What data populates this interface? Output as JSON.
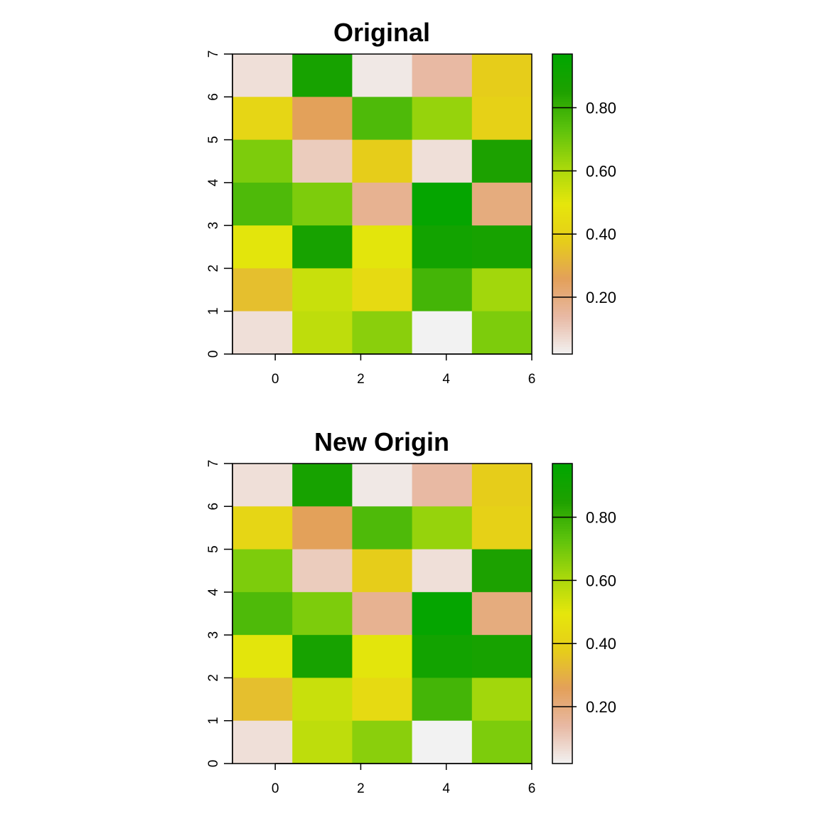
{
  "chart_data": [
    {
      "type": "heatmap",
      "title": "Original",
      "xlabel": "",
      "ylabel": "",
      "x_ticks": [
        "0",
        "2",
        "4",
        "6"
      ],
      "y_ticks": [
        "0",
        "1",
        "2",
        "3",
        "4",
        "5",
        "6",
        "7"
      ],
      "xlim": [
        -1,
        6
      ],
      "ylim": [
        0,
        7
      ],
      "legend_ticks": [
        "0.20",
        "0.40",
        "0.60",
        "0.80"
      ],
      "legend_range": [
        0.02,
        0.97
      ],
      "colors": [
        "#F2F2F2",
        "#E8B9A4",
        "#E3A05B",
        "#E6CC1A",
        "#E6E60C",
        "#A6D80C",
        "#5DC20C",
        "#1EA100",
        "#00A600"
      ],
      "rows_top_to_bottom": [
        [
          0.06,
          0.88,
          0.04,
          0.14,
          0.38
        ],
        [
          0.42,
          0.26,
          0.76,
          0.64,
          0.4
        ],
        [
          0.68,
          0.1,
          0.38,
          0.06,
          0.86
        ],
        [
          0.76,
          0.68,
          0.17,
          0.95,
          0.2
        ],
        [
          0.5,
          0.88,
          0.5,
          0.9,
          0.88
        ],
        [
          0.34,
          0.55,
          0.44,
          0.78,
          0.62
        ],
        [
          0.06,
          0.57,
          0.66,
          0.02,
          0.68
        ]
      ]
    },
    {
      "type": "heatmap",
      "title": "New Origin",
      "xlabel": "",
      "ylabel": "",
      "x_ticks": [
        "0",
        "2",
        "4",
        "6"
      ],
      "y_ticks": [
        "0",
        "1",
        "2",
        "3",
        "4",
        "5",
        "6",
        "7"
      ],
      "xlim": [
        -1,
        6
      ],
      "ylim": [
        0,
        7
      ],
      "legend_ticks": [
        "0.20",
        "0.40",
        "0.60",
        "0.80"
      ],
      "legend_range": [
        0.02,
        0.97
      ],
      "colors": [
        "#F2F2F2",
        "#E8B9A4",
        "#E3A05B",
        "#E6CC1A",
        "#E6E60C",
        "#A6D80C",
        "#5DC20C",
        "#1EA100",
        "#00A600"
      ],
      "rows_top_to_bottom": [
        [
          0.06,
          0.88,
          0.04,
          0.14,
          0.38
        ],
        [
          0.42,
          0.26,
          0.76,
          0.64,
          0.4
        ],
        [
          0.68,
          0.1,
          0.38,
          0.06,
          0.86
        ],
        [
          0.76,
          0.68,
          0.17,
          0.95,
          0.2
        ],
        [
          0.5,
          0.88,
          0.5,
          0.9,
          0.88
        ],
        [
          0.34,
          0.55,
          0.44,
          0.78,
          0.62
        ],
        [
          0.06,
          0.57,
          0.66,
          0.02,
          0.68
        ]
      ]
    }
  ]
}
